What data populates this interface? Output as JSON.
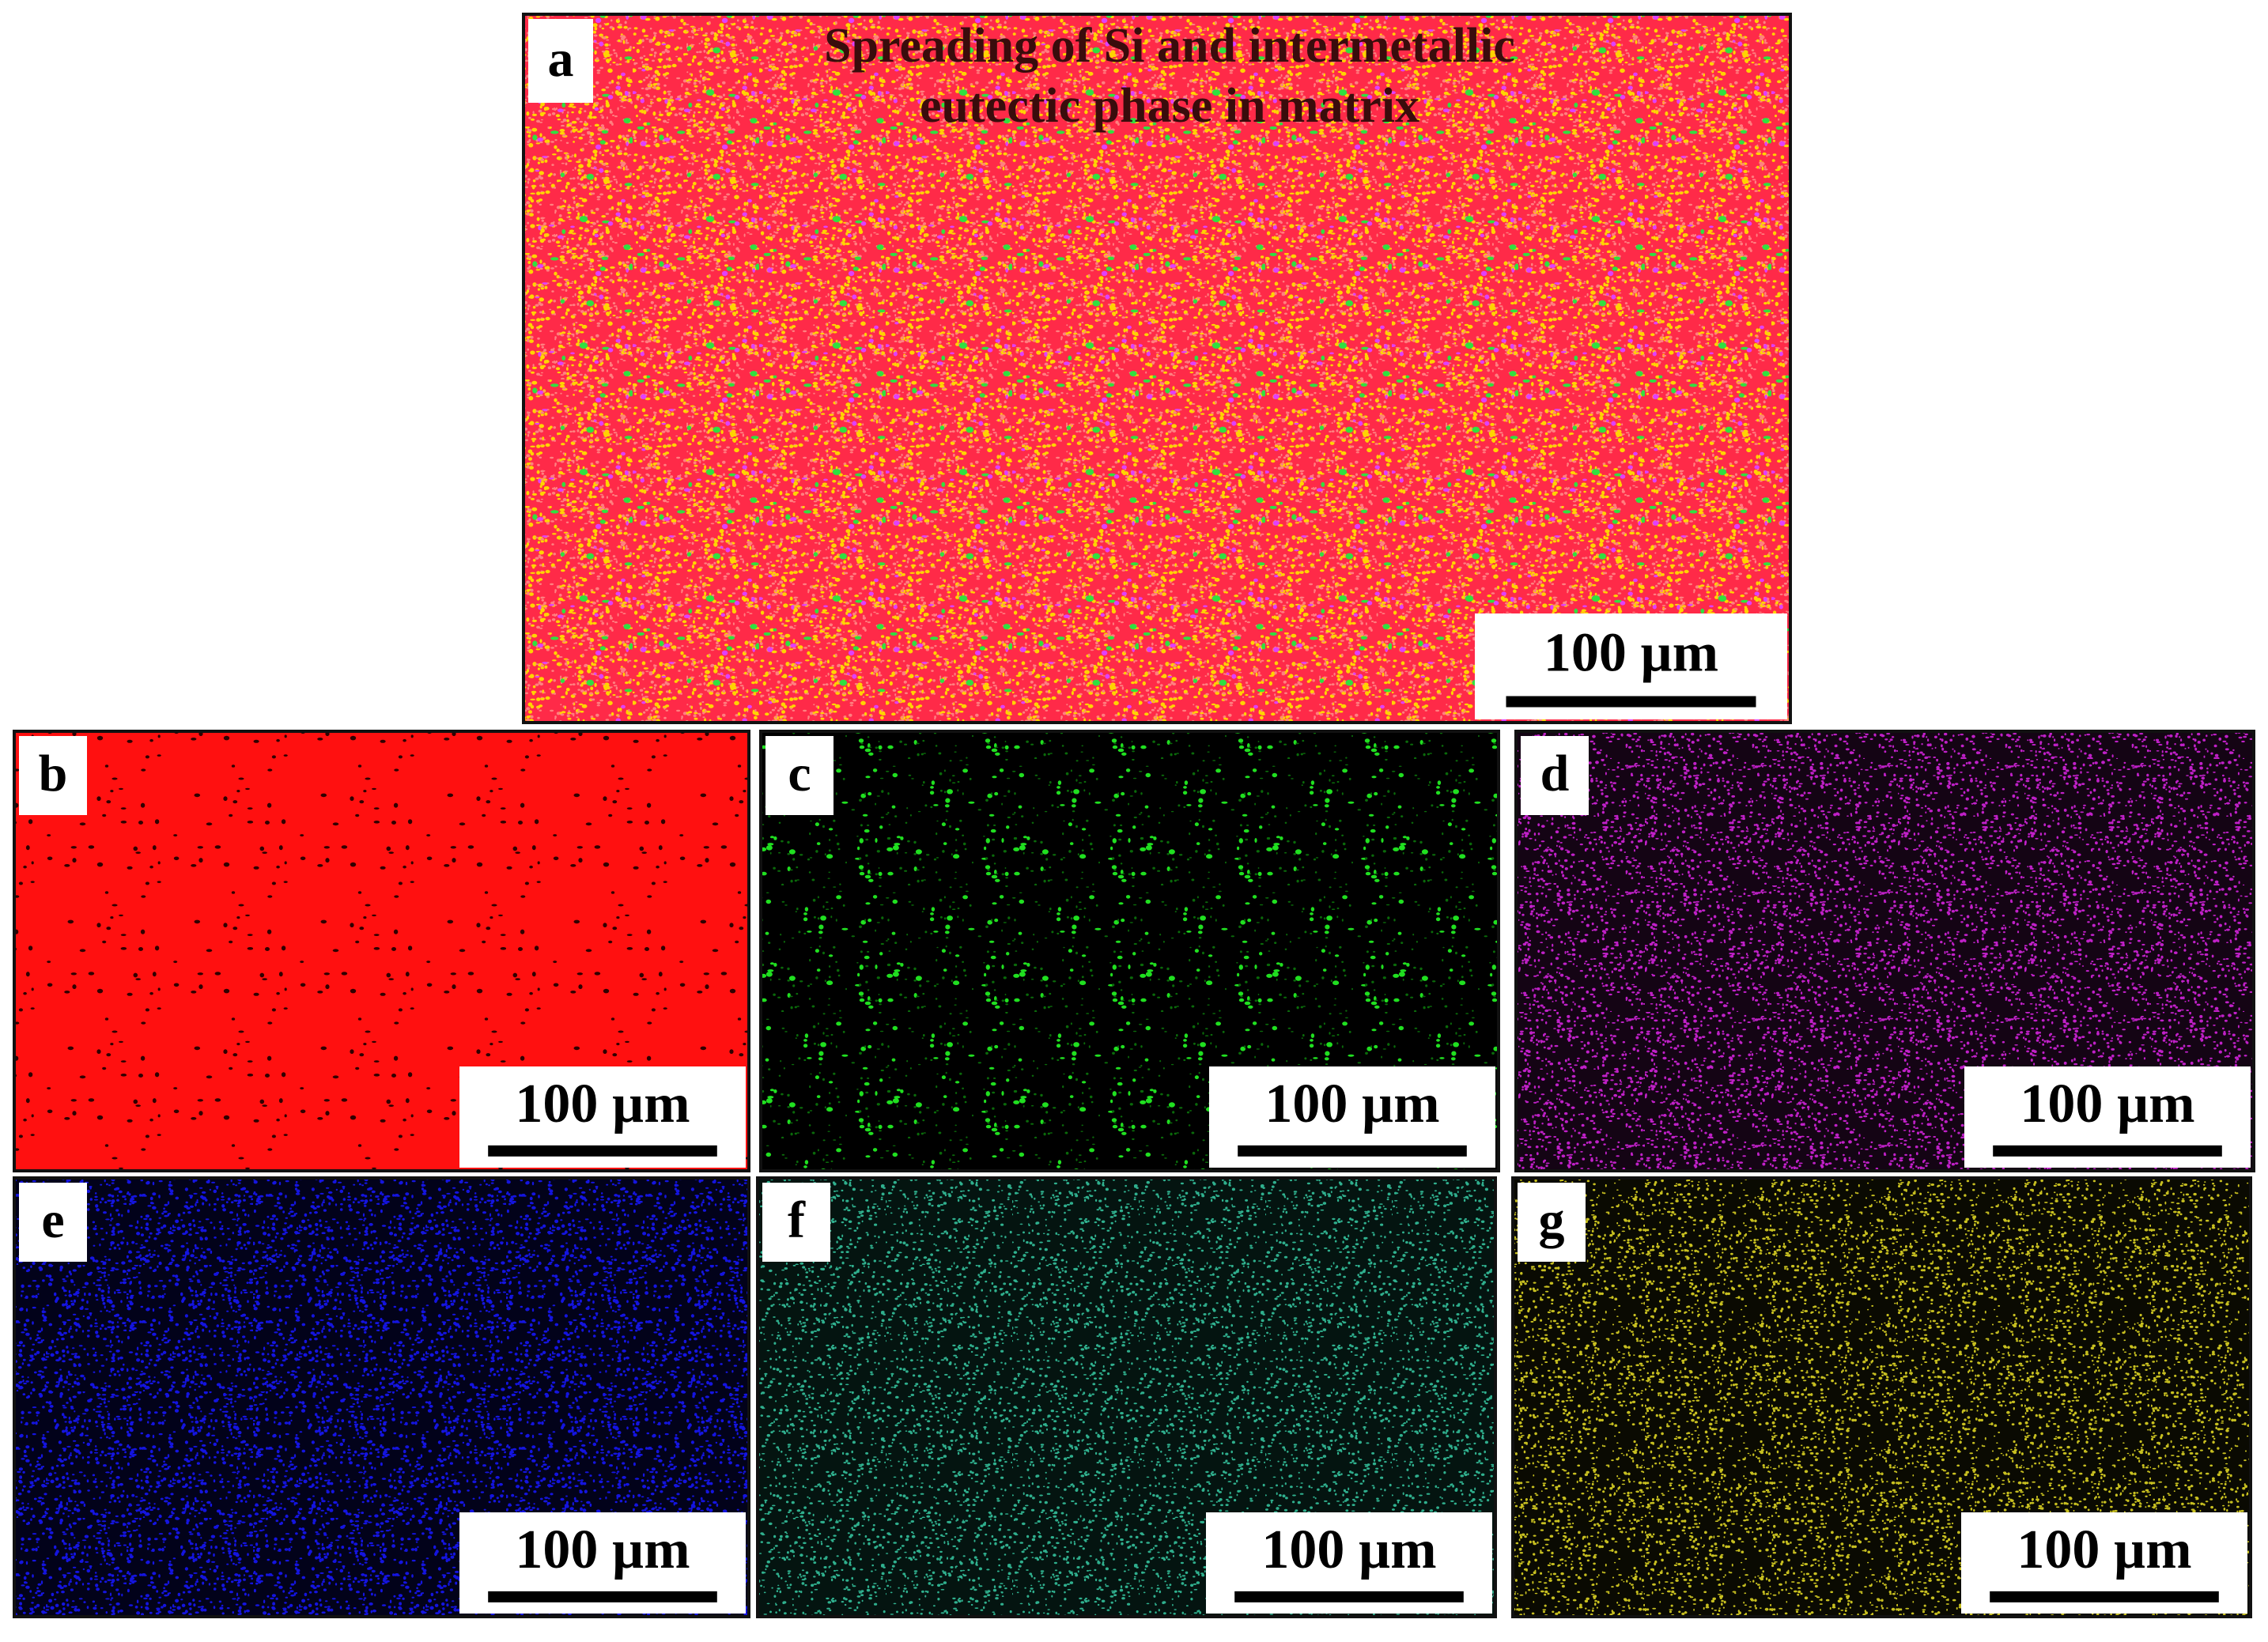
{
  "panels": [
    {
      "label": "a",
      "title": [
        "Spreading of Si and intermetallic",
        "eutectic phase in matrix"
      ],
      "scale_bar": "100 µm"
    },
    {
      "label": "b",
      "scale_bar": "100 µm"
    },
    {
      "label": "c",
      "scale_bar": "100 µm"
    },
    {
      "label": "d",
      "scale_bar": "100 µm"
    },
    {
      "label": "e",
      "scale_bar": "100 µm"
    },
    {
      "label": "f",
      "scale_bar": "100 µm"
    },
    {
      "label": "g",
      "scale_bar": "100 µm"
    }
  ]
}
